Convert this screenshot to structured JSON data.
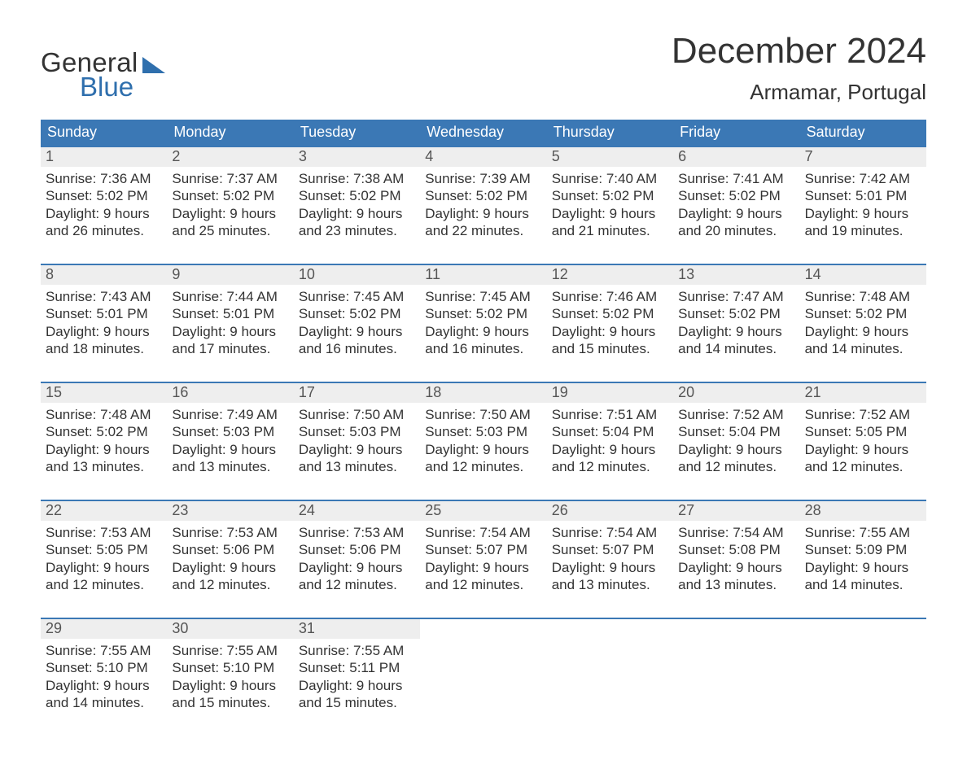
{
  "colors": {
    "header_blue": "#3b78b5",
    "logo_blue": "#2f6fad",
    "row_rule": "#3b78b5",
    "daynum_bg": "#eeeeee",
    "text": "#333333",
    "bg": "#ffffff"
  },
  "typography": {
    "font_family": "Arial, Helvetica, sans-serif",
    "month_title_size_pt": 33,
    "location_size_pt": 20,
    "weekday_size_pt": 14,
    "body_size_pt": 13
  },
  "logo": {
    "word1": "General",
    "word2": "Blue"
  },
  "title": "December 2024",
  "location": "Armamar, Portugal",
  "weekdays": [
    "Sunday",
    "Monday",
    "Tuesday",
    "Wednesday",
    "Thursday",
    "Friday",
    "Saturday"
  ],
  "labels": {
    "sunrise": "Sunrise:",
    "sunset": "Sunset:",
    "daylight": "Daylight:"
  },
  "weeks": [
    [
      {
        "n": "1",
        "sunrise": "7:36 AM",
        "sunset": "5:02 PM",
        "daylight": "9 hours and 26 minutes."
      },
      {
        "n": "2",
        "sunrise": "7:37 AM",
        "sunset": "5:02 PM",
        "daylight": "9 hours and 25 minutes."
      },
      {
        "n": "3",
        "sunrise": "7:38 AM",
        "sunset": "5:02 PM",
        "daylight": "9 hours and 23 minutes."
      },
      {
        "n": "4",
        "sunrise": "7:39 AM",
        "sunset": "5:02 PM",
        "daylight": "9 hours and 22 minutes."
      },
      {
        "n": "5",
        "sunrise": "7:40 AM",
        "sunset": "5:02 PM",
        "daylight": "9 hours and 21 minutes."
      },
      {
        "n": "6",
        "sunrise": "7:41 AM",
        "sunset": "5:02 PM",
        "daylight": "9 hours and 20 minutes."
      },
      {
        "n": "7",
        "sunrise": "7:42 AM",
        "sunset": "5:01 PM",
        "daylight": "9 hours and 19 minutes."
      }
    ],
    [
      {
        "n": "8",
        "sunrise": "7:43 AM",
        "sunset": "5:01 PM",
        "daylight": "9 hours and 18 minutes."
      },
      {
        "n": "9",
        "sunrise": "7:44 AM",
        "sunset": "5:01 PM",
        "daylight": "9 hours and 17 minutes."
      },
      {
        "n": "10",
        "sunrise": "7:45 AM",
        "sunset": "5:02 PM",
        "daylight": "9 hours and 16 minutes."
      },
      {
        "n": "11",
        "sunrise": "7:45 AM",
        "sunset": "5:02 PM",
        "daylight": "9 hours and 16 minutes."
      },
      {
        "n": "12",
        "sunrise": "7:46 AM",
        "sunset": "5:02 PM",
        "daylight": "9 hours and 15 minutes."
      },
      {
        "n": "13",
        "sunrise": "7:47 AM",
        "sunset": "5:02 PM",
        "daylight": "9 hours and 14 minutes."
      },
      {
        "n": "14",
        "sunrise": "7:48 AM",
        "sunset": "5:02 PM",
        "daylight": "9 hours and 14 minutes."
      }
    ],
    [
      {
        "n": "15",
        "sunrise": "7:48 AM",
        "sunset": "5:02 PM",
        "daylight": "9 hours and 13 minutes."
      },
      {
        "n": "16",
        "sunrise": "7:49 AM",
        "sunset": "5:03 PM",
        "daylight": "9 hours and 13 minutes."
      },
      {
        "n": "17",
        "sunrise": "7:50 AM",
        "sunset": "5:03 PM",
        "daylight": "9 hours and 13 minutes."
      },
      {
        "n": "18",
        "sunrise": "7:50 AM",
        "sunset": "5:03 PM",
        "daylight": "9 hours and 12 minutes."
      },
      {
        "n": "19",
        "sunrise": "7:51 AM",
        "sunset": "5:04 PM",
        "daylight": "9 hours and 12 minutes."
      },
      {
        "n": "20",
        "sunrise": "7:52 AM",
        "sunset": "5:04 PM",
        "daylight": "9 hours and 12 minutes."
      },
      {
        "n": "21",
        "sunrise": "7:52 AM",
        "sunset": "5:05 PM",
        "daylight": "9 hours and 12 minutes."
      }
    ],
    [
      {
        "n": "22",
        "sunrise": "7:53 AM",
        "sunset": "5:05 PM",
        "daylight": "9 hours and 12 minutes."
      },
      {
        "n": "23",
        "sunrise": "7:53 AM",
        "sunset": "5:06 PM",
        "daylight": "9 hours and 12 minutes."
      },
      {
        "n": "24",
        "sunrise": "7:53 AM",
        "sunset": "5:06 PM",
        "daylight": "9 hours and 12 minutes."
      },
      {
        "n": "25",
        "sunrise": "7:54 AM",
        "sunset": "5:07 PM",
        "daylight": "9 hours and 12 minutes."
      },
      {
        "n": "26",
        "sunrise": "7:54 AM",
        "sunset": "5:07 PM",
        "daylight": "9 hours and 13 minutes."
      },
      {
        "n": "27",
        "sunrise": "7:54 AM",
        "sunset": "5:08 PM",
        "daylight": "9 hours and 13 minutes."
      },
      {
        "n": "28",
        "sunrise": "7:55 AM",
        "sunset": "5:09 PM",
        "daylight": "9 hours and 14 minutes."
      }
    ],
    [
      {
        "n": "29",
        "sunrise": "7:55 AM",
        "sunset": "5:10 PM",
        "daylight": "9 hours and 14 minutes."
      },
      {
        "n": "30",
        "sunrise": "7:55 AM",
        "sunset": "5:10 PM",
        "daylight": "9 hours and 15 minutes."
      },
      {
        "n": "31",
        "sunrise": "7:55 AM",
        "sunset": "5:11 PM",
        "daylight": "9 hours and 15 minutes."
      },
      null,
      null,
      null,
      null
    ]
  ]
}
